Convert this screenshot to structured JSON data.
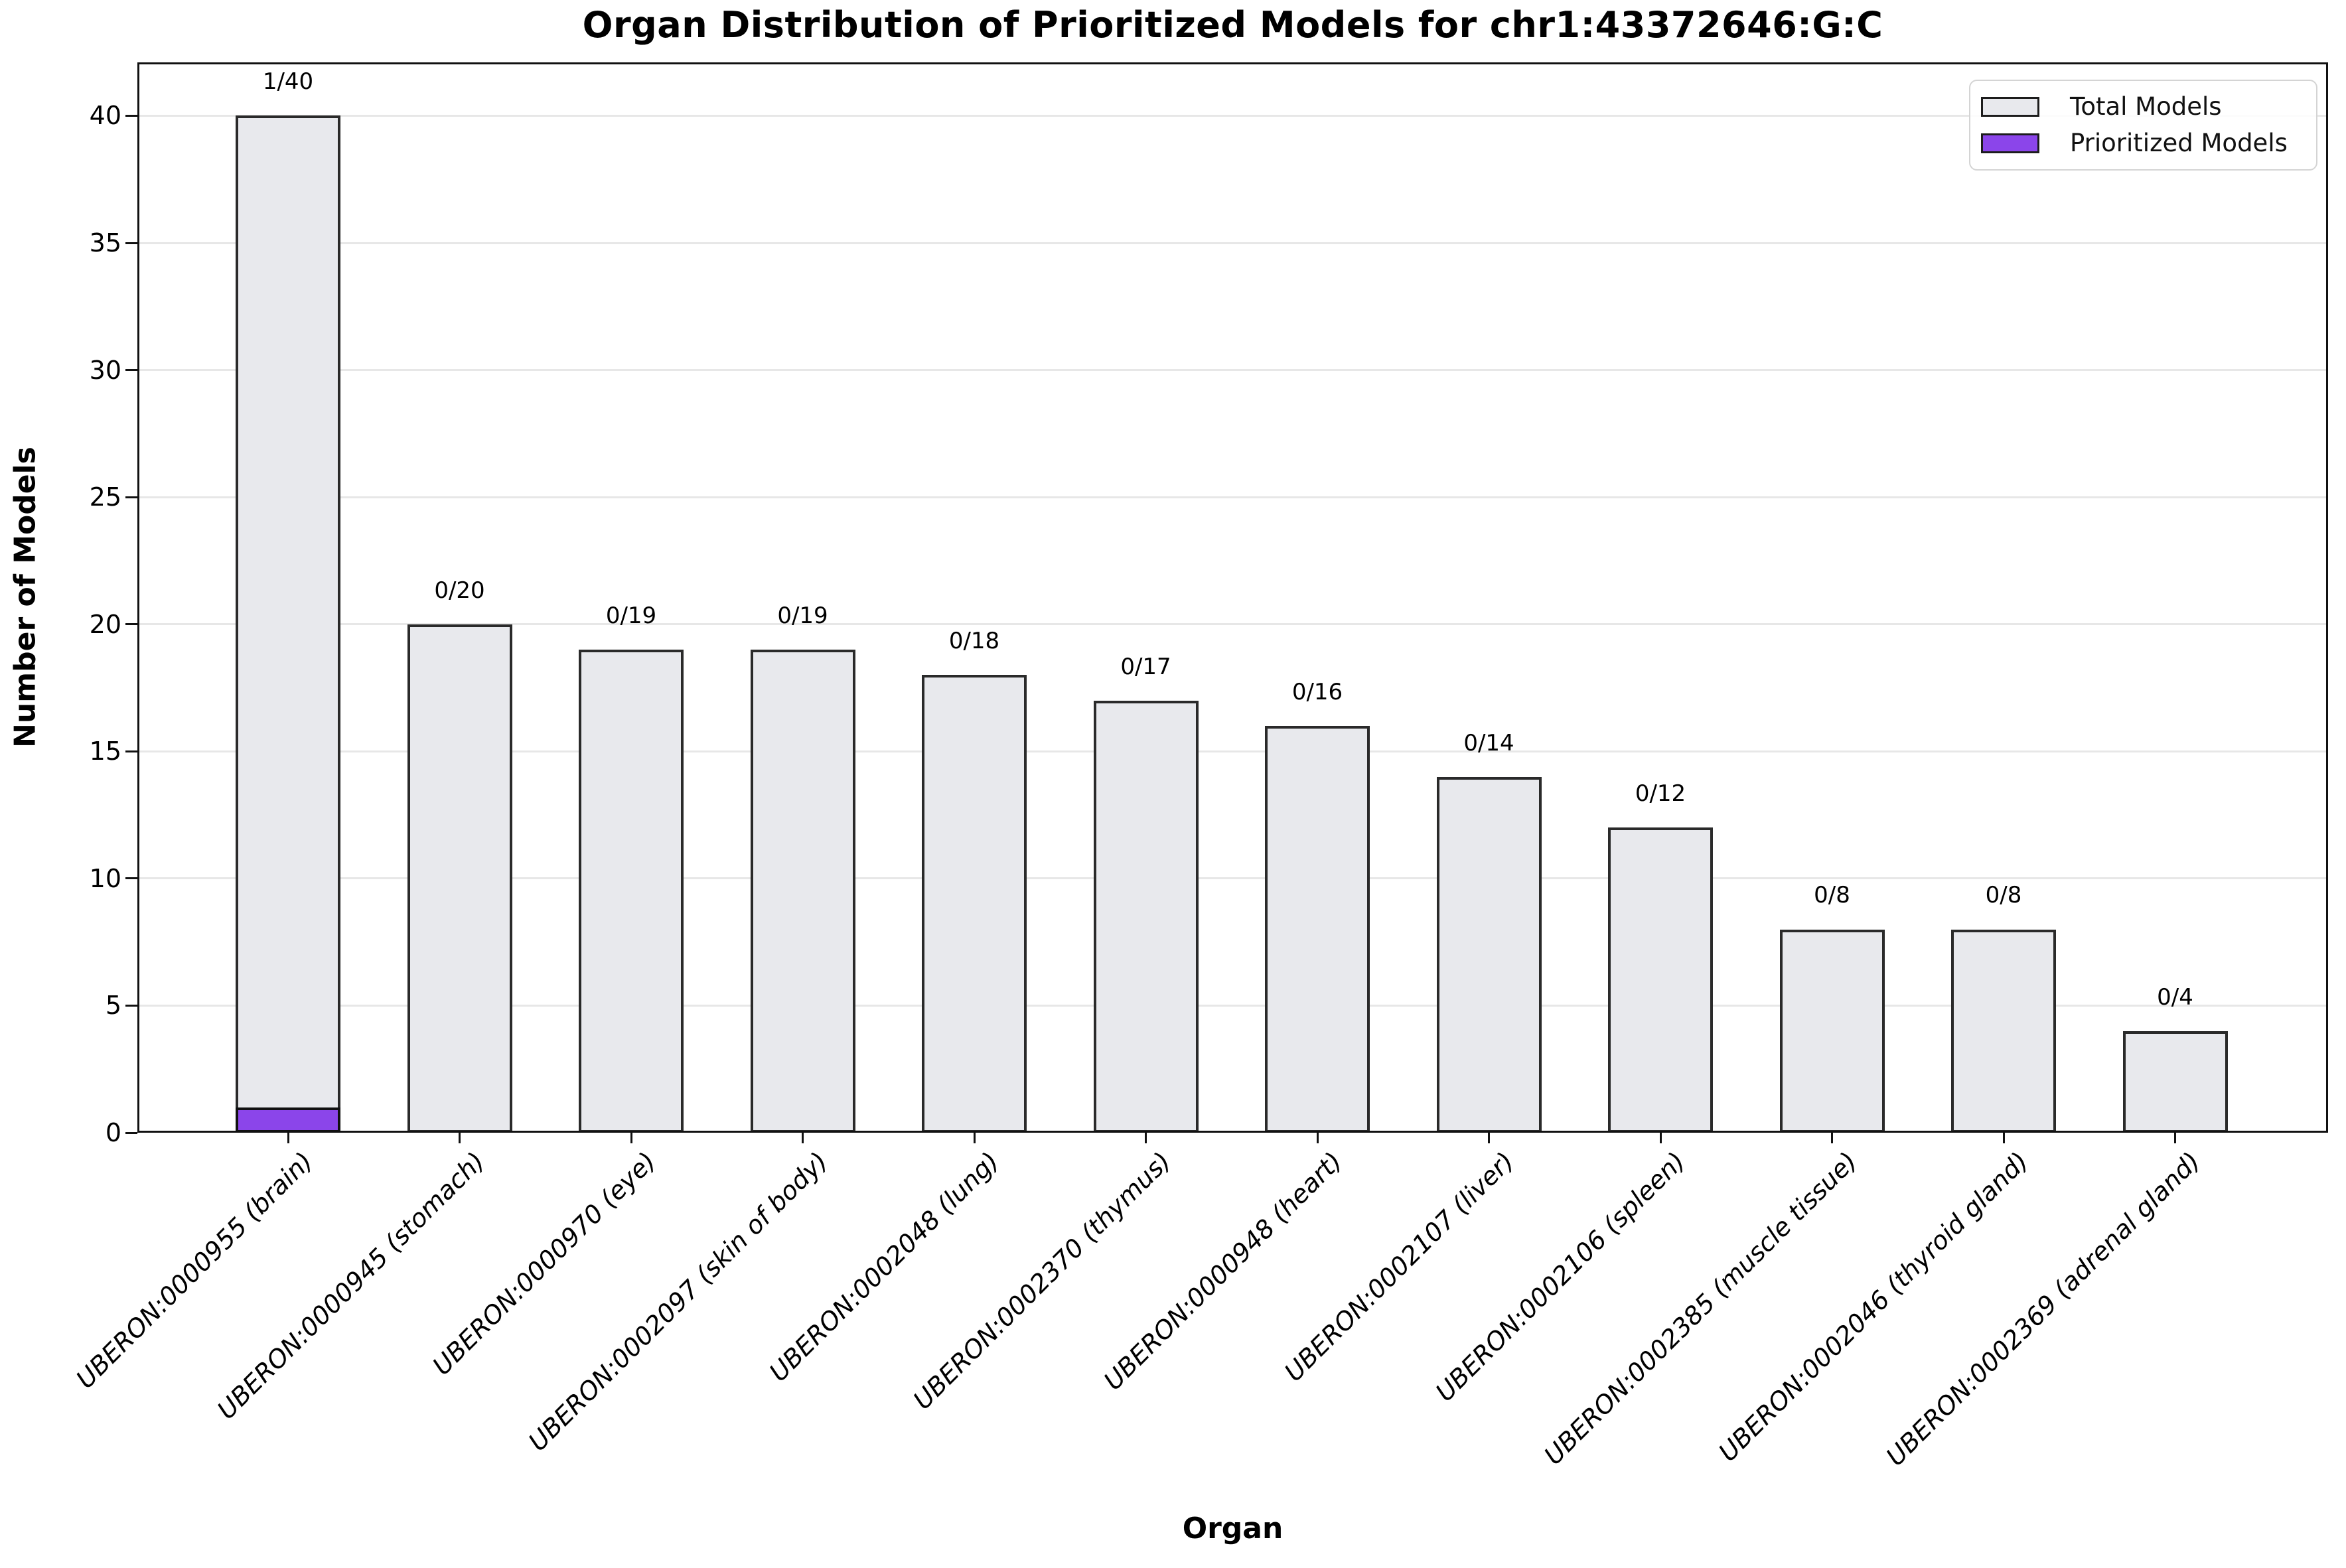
{
  "chart_data": {
    "type": "bar",
    "stacked": true,
    "title": "Organ Distribution of Prioritized Models for chr1:43372646:G:C",
    "xlabel": "Organ",
    "ylabel": "Number of Models",
    "categories": [
      "UBERON:0000955 (brain)",
      "UBERON:0000945 (stomach)",
      "UBERON:0000970 (eye)",
      "UBERON:0002097 (skin of body)",
      "UBERON:0002048 (lung)",
      "UBERON:0002370 (thymus)",
      "UBERON:0000948 (heart)",
      "UBERON:0002107 (liver)",
      "UBERON:0002106 (spleen)",
      "UBERON:0002385 (muscle tissue)",
      "UBERON:0002046 (thyroid gland)",
      "UBERON:0002369 (adrenal gland)"
    ],
    "series": [
      {
        "name": "Total Models",
        "color": "#E8E9ED",
        "edge_color": "#2a2a2a",
        "values": [
          40,
          20,
          19,
          19,
          18,
          17,
          16,
          14,
          12,
          8,
          8,
          4
        ]
      },
      {
        "name": "Prioritized Models",
        "color": "#8B45EA",
        "edge_color": "#111111",
        "values": [
          1,
          0,
          0,
          0,
          0,
          0,
          0,
          0,
          0,
          0,
          0,
          0
        ]
      }
    ],
    "bar_labels": [
      "1/40",
      "0/20",
      "0/19",
      "0/19",
      "0/18",
      "0/17",
      "0/16",
      "0/14",
      "0/12",
      "0/8",
      "0/8",
      "0/4"
    ],
    "yticks": [
      0,
      5,
      10,
      15,
      20,
      25,
      30,
      35,
      40
    ],
    "ylim": [
      0,
      42.1
    ],
    "grid": "horizontal",
    "grid_color": "#e7e7e7",
    "spine_color": "#111111",
    "legend_position": "upper right"
  }
}
